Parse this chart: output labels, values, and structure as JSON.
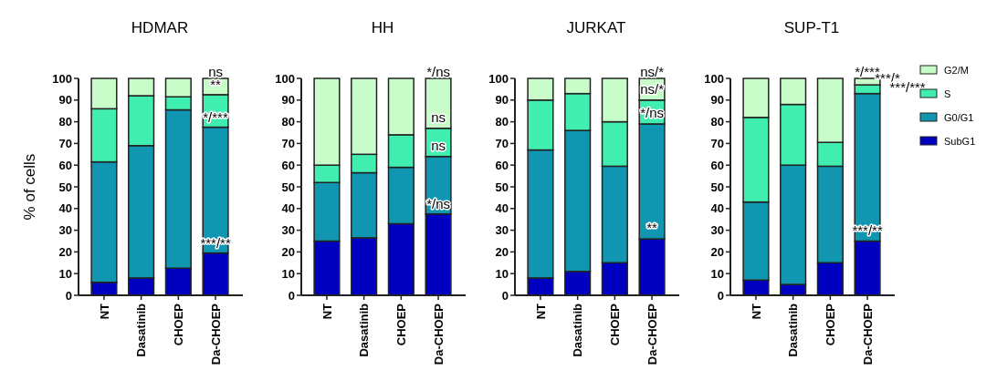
{
  "chart_data": [
    {
      "type": "bar",
      "title": "HDMAR",
      "ylabel": "% of cells",
      "stacked": true,
      "categories": [
        "NT",
        "Dasatinib",
        "CHOEP",
        "Da-CHOEP"
      ],
      "ylim": [
        0,
        100
      ],
      "yticks": [
        0,
        10,
        20,
        30,
        40,
        50,
        60,
        70,
        80,
        90,
        100
      ],
      "legend": false,
      "series": [
        {
          "color": "#0000c0",
          "values": [
            6,
            8,
            12.5,
            19.5
          ]
        },
        {
          "color": "#1096b0",
          "values": [
            55.5,
            61,
            73,
            58
          ]
        },
        {
          "color": "#40eeb0",
          "values": [
            24.5,
            23,
            6,
            15
          ]
        },
        {
          "color": "#c8fcc8",
          "values": [
            14,
            8,
            8.5,
            7.5
          ]
        }
      ],
      "annotations": [
        {
          "text": "ns",
          "x": "Da-CHOEP",
          "y": 100
        },
        {
          "text": "**",
          "x": "Da-CHOEP",
          "y": 94
        },
        {
          "text": "*/***",
          "x": "Da-CHOEP",
          "y": 79
        },
        {
          "text": "***/**",
          "x": "Da-CHOEP",
          "y": 21
        }
      ]
    },
    {
      "type": "bar",
      "title": "HH",
      "stacked": true,
      "categories": [
        "NT",
        "Dasatinib",
        "CHOEP",
        "Da-CHOEP"
      ],
      "ylim": [
        0,
        100
      ],
      "yticks": [
        0,
        10,
        20,
        30,
        40,
        50,
        60,
        70,
        80,
        90,
        100
      ],
      "legend": false,
      "series": [
        {
          "color": "#0000c0",
          "values": [
            25,
            26.5,
            33,
            37.5
          ]
        },
        {
          "color": "#1096b0",
          "values": [
            27,
            30,
            26,
            26.5
          ]
        },
        {
          "color": "#40eeb0",
          "values": [
            8,
            8.5,
            15,
            13
          ]
        },
        {
          "color": "#c8fcc8",
          "values": [
            40,
            35,
            26,
            23
          ]
        }
      ],
      "annotations": [
        {
          "text": "*/ns",
          "x": "Da-CHOEP",
          "y": 100
        },
        {
          "text": "ns",
          "x": "Da-CHOEP",
          "y": 79
        },
        {
          "text": "ns",
          "x": "Da-CHOEP",
          "y": 66
        },
        {
          "text": "*/ns",
          "x": "Da-CHOEP",
          "y": 39
        }
      ]
    },
    {
      "type": "bar",
      "title": "JURKAT",
      "stacked": true,
      "categories": [
        "NT",
        "Dasatinib",
        "CHOEP",
        "Da-CHOEP"
      ],
      "ylim": [
        0,
        100
      ],
      "yticks": [
        0,
        10,
        20,
        30,
        40,
        50,
        60,
        70,
        80,
        90,
        100
      ],
      "legend": false,
      "series": [
        {
          "color": "#0000c0",
          "values": [
            8,
            11,
            15,
            26
          ]
        },
        {
          "color": "#1096b0",
          "values": [
            59,
            65,
            44.5,
            53
          ]
        },
        {
          "color": "#40eeb0",
          "values": [
            23,
            17,
            20.5,
            11
          ]
        },
        {
          "color": "#c8fcc8",
          "values": [
            10,
            7,
            20,
            10
          ]
        }
      ],
      "annotations": [
        {
          "text": "ns/*",
          "x": "Da-CHOEP",
          "y": 100
        },
        {
          "text": "ns/*",
          "x": "Da-CHOEP",
          "y": 92
        },
        {
          "text": "*/ns",
          "x": "Da-CHOEP",
          "y": 81
        },
        {
          "text": "**",
          "x": "Da-CHOEP",
          "y": 28
        }
      ]
    },
    {
      "type": "bar",
      "title": "SUP-T1",
      "stacked": true,
      "categories": [
        "NT",
        "Dasatinib",
        "CHOEP",
        "Da-CHOEP"
      ],
      "ylim": [
        0,
        100
      ],
      "yticks": [
        0,
        10,
        20,
        30,
        40,
        50,
        60,
        70,
        80,
        90,
        100
      ],
      "legend": "right",
      "series": [
        {
          "name": "SubG1",
          "color": "#0000c0",
          "values": [
            7,
            5,
            15,
            25
          ]
        },
        {
          "name": "G0/G1",
          "color": "#1096b0",
          "values": [
            36,
            55,
            44.5,
            68
          ]
        },
        {
          "name": "S",
          "color": "#40eeb0",
          "values": [
            39,
            28,
            11,
            4
          ]
        },
        {
          "name": "G2/M",
          "color": "#c8fcc8",
          "values": [
            18,
            12,
            29.5,
            3
          ]
        }
      ],
      "annotations": [
        {
          "text": "*/***",
          "x": "Da-CHOEP",
          "y": 100
        },
        {
          "text": "***/*",
          "x": "Da-CHOEP",
          "y": 97
        },
        {
          "text": "***/***",
          "x": "Da-CHOEP",
          "y": 93
        },
        {
          "text": "***/**",
          "x": "Da-CHOEP",
          "y": 27
        }
      ]
    }
  ]
}
